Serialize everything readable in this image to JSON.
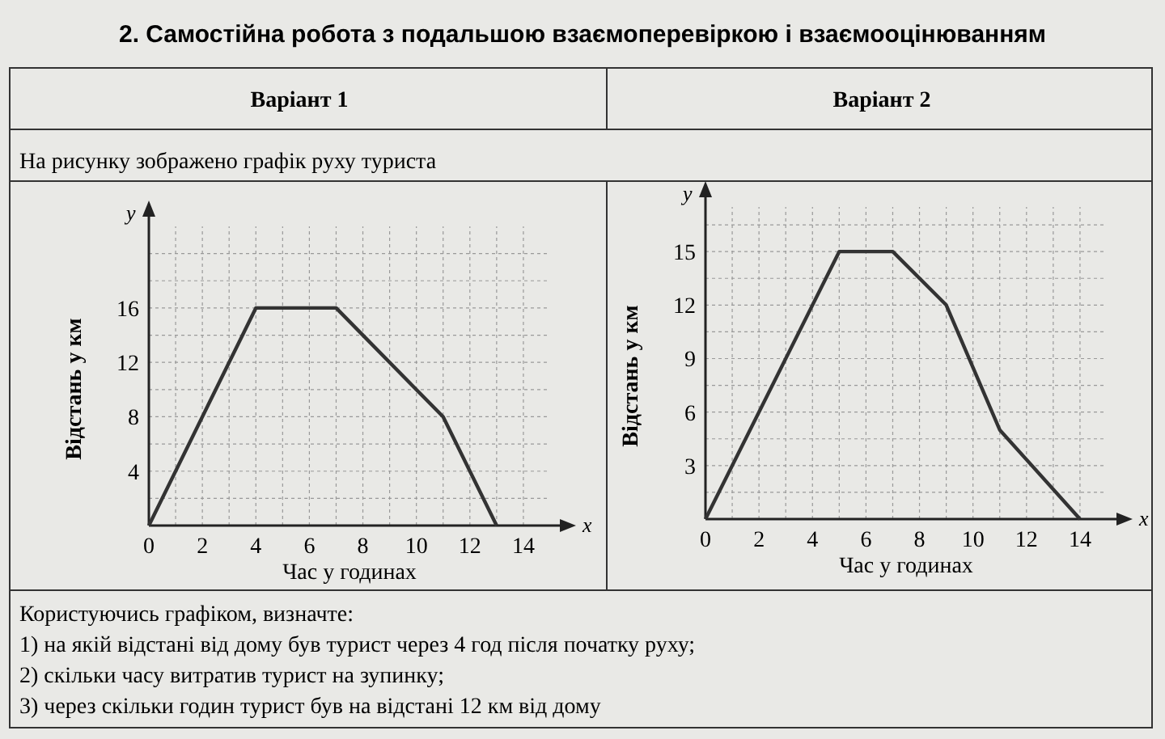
{
  "chart_data": [
    {
      "type": "line",
      "title": "2. Самостійна робота з подальшою взаємоперевіркою і взаємооцінюванням",
      "subtitle": "Варіант 1",
      "xlabel": "Час у годинах",
      "ylabel": "Відстань у км",
      "x": [
        0,
        4,
        7,
        11,
        13
      ],
      "series": [
        {
          "color": "#333333",
          "values": [
            0,
            16,
            16,
            8,
            0
          ]
        }
      ],
      "xlim": [
        0,
        15
      ],
      "ylim": [
        0,
        22
      ],
      "xticks": [
        0,
        2,
        4,
        6,
        8,
        10,
        12,
        14
      ],
      "yticks": [
        4,
        8,
        12,
        16
      ],
      "grid": true,
      "marker": "none",
      "line_style": "solid",
      "annotations": [
        "y",
        "x",
        "На рисунку зображено графік руху туриста",
        "Користуючись графіком, визначте:",
        "1) на якій відстані від дому був турист через 4 год після початку руху;",
        "2) скільки часу витратив турист на зупинку;",
        "3) через скільки годин турист був на відстані 12 км від дому"
      ]
    },
    {
      "type": "line",
      "subtitle": "Варіант 2",
      "xlabel": "Час у годинах",
      "ylabel": "Відстань у км",
      "x": [
        0,
        5,
        7,
        9,
        11,
        14
      ],
      "series": [
        {
          "color": "#333333",
          "values": [
            0,
            15,
            15,
            12,
            5,
            0
          ]
        }
      ],
      "xlim": [
        0,
        15
      ],
      "ylim": [
        0,
        17.5
      ],
      "xticks": [
        0,
        2,
        4,
        6,
        8,
        10,
        12,
        14
      ],
      "yticks": [
        3,
        6,
        9,
        12,
        15
      ],
      "grid": true,
      "marker": "none",
      "line_style": "solid",
      "annotations": [
        "y",
        "x"
      ]
    }
  ]
}
